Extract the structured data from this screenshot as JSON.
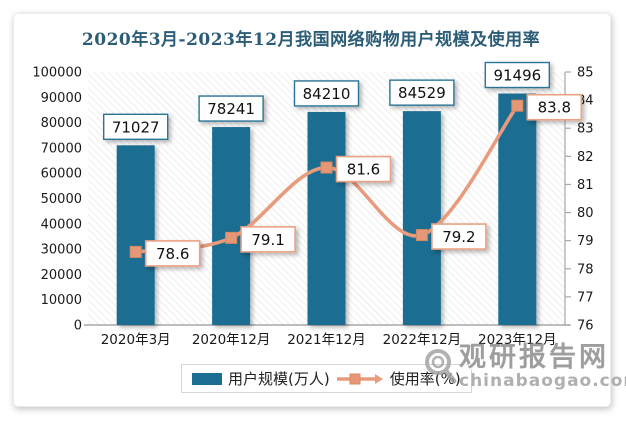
{
  "title": "2020年3月-2023年12月我国网络购物用户规模及使用率",
  "chart_data": {
    "type": "bar",
    "subtype": "bar+line-dual-axis",
    "categories": [
      "2020年3月",
      "2020年12月",
      "2021年12月",
      "2022年12月",
      "2023年12月"
    ],
    "series": [
      {
        "name": "用户规模(万人)",
        "type": "bar",
        "axis": "left",
        "values": [
          71027,
          78241,
          84210,
          84529,
          91496
        ]
      },
      {
        "name": "使用率(%)",
        "type": "line",
        "axis": "right",
        "values": [
          78.6,
          79.1,
          81.6,
          79.2,
          83.8
        ]
      }
    ],
    "left_axis": {
      "min": 0,
      "max": 100000,
      "step": 10000
    },
    "right_axis": {
      "min": 76,
      "max": 85,
      "step": 1
    },
    "grid": false,
    "legend_position": "bottom"
  },
  "colors": {
    "bar": "#1c6d92",
    "bar_label_border": "#2a7496",
    "line": "#e89b7d",
    "marker_fill": "#e59877",
    "marker_stroke": "#d8885f",
    "line_label_border": "#e9a285",
    "title": "#2c5d77",
    "axis_text": "#1a1a1a",
    "axis_line": "#a8a8a8",
    "watermark_brand": "#9e9e9e",
    "watermark_domain": "#b0b0b0"
  },
  "watermark": {
    "brand": "观研报告网",
    "domain": "chinabaogao.com"
  }
}
